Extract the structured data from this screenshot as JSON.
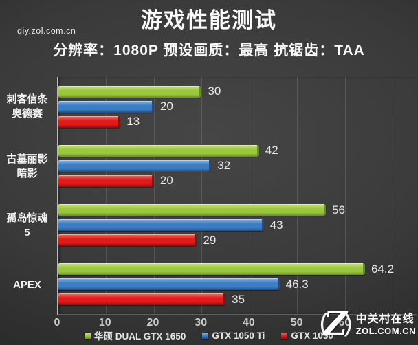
{
  "title": "游戏性能测试",
  "watermark": "diy.zol.com.cn",
  "subtitle": "分辨率：1080P  预设画质：最高  抗锯齿：TAA",
  "chart_data": {
    "type": "bar",
    "orientation": "horizontal",
    "title": "游戏性能测试",
    "subtitle": "分辨率：1080P 预设画质：最高 抗锯齿：TAA",
    "categories": [
      [
        "刺客信条",
        "奥德赛"
      ],
      [
        "古墓丽影",
        "暗影"
      ],
      [
        "孤岛惊魂",
        "5"
      ],
      [
        "APEX"
      ]
    ],
    "series": [
      {
        "name": "华硕 DUAL GTX 1650",
        "color": "#9ac83c",
        "color_light": "#c8e27f",
        "color_dark": "#678f1f",
        "values": [
          30,
          42,
          56,
          64.2
        ]
      },
      {
        "name": "GTX 1050 Ti",
        "color": "#3c7ec3",
        "color_light": "#84b4e2",
        "color_dark": "#1f4e86",
        "values": [
          20,
          32,
          43,
          46.3
        ]
      },
      {
        "name": "GTX 1050",
        "color": "#df1b1b",
        "color_light": "#f26a5c",
        "color_dark": "#8f0e0e",
        "values": [
          13,
          20,
          29,
          35
        ]
      }
    ],
    "xlim": [
      0,
      75
    ],
    "xticks": [
      0,
      10,
      20,
      30,
      40,
      50,
      60
    ],
    "gridlines": [
      10,
      20,
      30,
      40,
      50,
      60,
      70
    ],
    "grid": true,
    "legend_position": "bottom",
    "xlabel": "",
    "ylabel": ""
  },
  "logo": {
    "glyph": "Z",
    "paren_left": "(",
    "paren_right": ")",
    "line1": "中关村在线",
    "line2": "ZOL.COM.CN"
  }
}
